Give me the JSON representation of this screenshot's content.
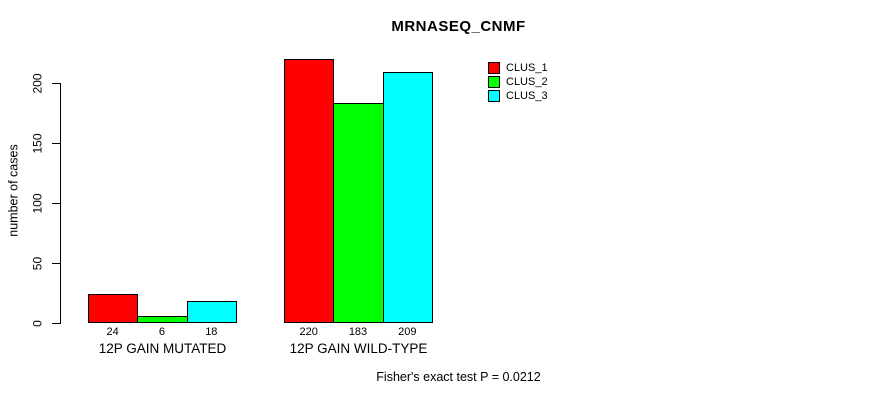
{
  "chart_data": {
    "type": "bar",
    "title": "MRNASEQ_CNMF",
    "ylabel": "number of cases",
    "xlabel": "",
    "categories": [
      "12P GAIN MUTATED",
      "12P GAIN WILD-TYPE"
    ],
    "series": [
      {
        "name": "CLUS_1",
        "color": "#ff0000",
        "values": [
          24,
          220
        ]
      },
      {
        "name": "CLUS_2",
        "color": "#00ff00",
        "values": [
          6,
          183
        ]
      },
      {
        "name": "CLUS_3",
        "color": "#00ffff",
        "values": [
          18,
          209
        ]
      }
    ],
    "yticks": [
      0,
      50,
      100,
      150,
      200
    ],
    "ylim": [
      0,
      220
    ],
    "grid": false,
    "bar_value_labels": true,
    "legend_position": "top-right",
    "legend_items": [
      "CLUS_1",
      "CLUS_2",
      "CLUS_3"
    ],
    "annotation": "Fisher's exact test P = 0.0212"
  }
}
